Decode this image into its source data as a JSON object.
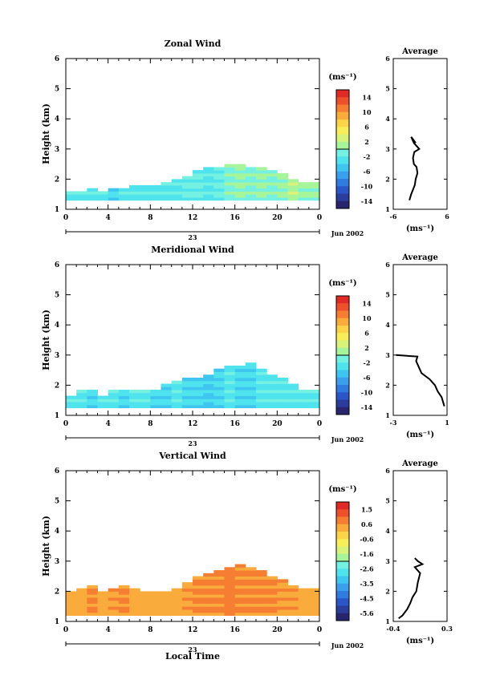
{
  "figure": {
    "xlabel": "Local Time",
    "date_label": "Jun 2002",
    "day_label": "23"
  },
  "chart_data": [
    {
      "type": "heatmap",
      "title": "Zonal Wind",
      "ylabel": "Height (km)",
      "xlabel": "",
      "x_ticks": [
        "0",
        "4",
        "8",
        "12",
        "16",
        "20",
        "0"
      ],
      "y_ticks": [
        "1",
        "2",
        "3",
        "4",
        "5",
        "6"
      ],
      "xlim": [
        0,
        24
      ],
      "ylim": [
        1,
        6
      ],
      "colorbar": {
        "unit": "(ms⁻¹)",
        "labels": [
          "14",
          "10",
          "6",
          "2",
          "-2",
          "-6",
          "-10",
          "-14"
        ],
        "range": [
          -16,
          16
        ]
      },
      "field": {
        "base_km": 1.3,
        "top_km": [
          1.6,
          1.6,
          1.7,
          1.6,
          1.7,
          1.7,
          1.8,
          1.8,
          1.8,
          1.9,
          2.0,
          2.1,
          2.3,
          2.4,
          2.4,
          2.5,
          2.5,
          2.4,
          2.4,
          2.3,
          2.2,
          2.0,
          1.9,
          1.9
        ],
        "value_ms": [
          -3,
          -3,
          -3,
          -3,
          -4,
          -3,
          -3,
          -3,
          -3,
          -3,
          -3,
          -2,
          -2,
          -3,
          -2,
          -1,
          0,
          -1,
          0,
          -1,
          0,
          1,
          0,
          0
        ]
      },
      "average_profile": {
        "title": "Average",
        "xlabel": "(ms⁻¹)",
        "x_ticks": [
          "-6",
          "6"
        ],
        "xlim": [
          -6,
          6
        ],
        "ylim": [
          1,
          6
        ],
        "x": [
          -2.4,
          -2.0,
          -1.2,
          -1.0,
          -0.6,
          -0.8,
          -1.4,
          -1.6,
          -1.3,
          -0.2,
          -1.4,
          -2.0,
          -1.0
        ],
        "y": [
          1.3,
          1.5,
          1.8,
          2.0,
          2.2,
          2.4,
          2.5,
          2.7,
          2.9,
          3.0,
          3.2,
          3.4,
          3.2
        ]
      }
    },
    {
      "type": "heatmap",
      "title": "Meridional Wind",
      "ylabel": "Height (km)",
      "xlabel": "",
      "x_ticks": [
        "0",
        "4",
        "8",
        "12",
        "16",
        "20",
        "0"
      ],
      "y_ticks": [
        "1",
        "2",
        "3",
        "4",
        "5",
        "6"
      ],
      "xlim": [
        0,
        24
      ],
      "ylim": [
        1,
        6
      ],
      "colorbar": {
        "unit": "(ms⁻¹)",
        "labels": [
          "14",
          "10",
          "6",
          "2",
          "-2",
          "-6",
          "-10",
          "-14"
        ],
        "range": [
          -16,
          16
        ]
      },
      "field": {
        "base_km": 1.25,
        "top_km": [
          1.7,
          1.8,
          1.8,
          1.7,
          1.8,
          1.8,
          1.9,
          1.8,
          1.9,
          2.0,
          2.1,
          2.2,
          2.3,
          2.4,
          2.5,
          2.6,
          2.6,
          2.7,
          2.5,
          2.4,
          2.2,
          2.0,
          1.9,
          1.9
        ],
        "value_ms": [
          -3,
          -3,
          -4,
          -3,
          -3,
          -4,
          -3,
          -3,
          -4,
          -4,
          -3,
          -4,
          -4,
          -5,
          -4,
          -3,
          -4,
          -4,
          -3,
          -3,
          -3,
          -3,
          -3,
          -3
        ]
      },
      "average_profile": {
        "title": "Average",
        "xlabel": "(ms⁻¹)",
        "x_ticks": [
          "-3",
          "1"
        ],
        "xlim": [
          -3,
          1
        ],
        "ylim": [
          1,
          6
        ],
        "x": [
          0.8,
          0.6,
          0.3,
          0.1,
          -0.3,
          -0.6,
          -0.9,
          -1.1,
          -1.3,
          -1.2,
          -2.8
        ],
        "y": [
          1.3,
          1.6,
          1.8,
          2.0,
          2.2,
          2.3,
          2.4,
          2.6,
          2.8,
          2.95,
          3.0
        ]
      }
    },
    {
      "type": "heatmap",
      "title": "Vertical Wind",
      "ylabel": "Height (km)",
      "xlabel": "Local Time",
      "x_ticks": [
        "0",
        "4",
        "8",
        "12",
        "16",
        "20",
        "0"
      ],
      "y_ticks": [
        "1",
        "2",
        "3",
        "4",
        "5",
        "6"
      ],
      "xlim": [
        0,
        24
      ],
      "ylim": [
        1,
        6
      ],
      "colorbar": {
        "unit": "(ms⁻¹)",
        "labels": [
          "1.5",
          "0.6",
          "-0.6",
          "-1.6",
          "-2.6",
          "-3.5",
          "-4.5",
          "-5.6"
        ],
        "range": [
          -6,
          2
        ]
      },
      "field": {
        "base_km": 1.2,
        "top_km": [
          2.0,
          2.1,
          2.2,
          2.0,
          2.1,
          2.2,
          2.1,
          2.0,
          2.0,
          2.0,
          2.1,
          2.3,
          2.5,
          2.6,
          2.7,
          2.8,
          2.9,
          2.8,
          2.7,
          2.5,
          2.4,
          2.2,
          2.1,
          2.1
        ],
        "value_ms": [
          0.3,
          0.3,
          0.5,
          0.3,
          0.4,
          0.5,
          0.3,
          0.3,
          0.3,
          0.2,
          0.3,
          0.4,
          0.5,
          0.5,
          0.6,
          0.7,
          0.6,
          0.6,
          0.5,
          0.5,
          0.4,
          0.4,
          0.3,
          0.3
        ]
      },
      "average_profile": {
        "title": "Average",
        "xlabel": "(ms⁻¹)",
        "x_ticks": [
          "-0.4",
          "0.3"
        ],
        "xlim": [
          -0.4,
          0.3
        ],
        "ylim": [
          1,
          6
        ],
        "x": [
          -0.33,
          -0.28,
          -0.22,
          -0.18,
          -0.15,
          -0.1,
          -0.08,
          -0.05,
          -0.12,
          -0.02,
          -0.08,
          -0.12
        ],
        "y": [
          1.1,
          1.2,
          1.4,
          1.6,
          1.8,
          2.0,
          2.3,
          2.6,
          2.8,
          2.9,
          3.0,
          3.1
        ]
      }
    }
  ]
}
